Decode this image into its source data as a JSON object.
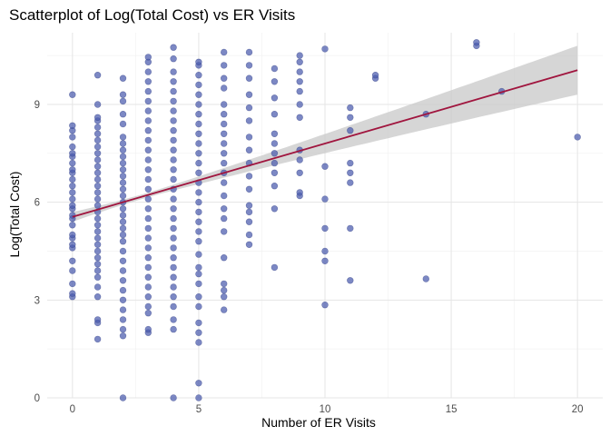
{
  "chart_data": {
    "type": "scatter",
    "title": "Scatterplot of Log(Total Cost) vs ER Visits",
    "xlabel": "Number of ER Visits",
    "ylabel": "Log(Total Cost)",
    "xlim": [
      -1,
      21
    ],
    "ylim": [
      0,
      11.2
    ],
    "x_ticks": [
      0,
      5,
      10,
      15,
      20
    ],
    "y_ticks": [
      0,
      3,
      6,
      9
    ],
    "x_tick_labels": [
      "0",
      "5",
      "10",
      "15",
      "20"
    ],
    "y_tick_labels": [
      "0",
      "3",
      "6",
      "9"
    ],
    "grid": true,
    "legend": "none",
    "colors": {
      "points": "#4a5aad",
      "fit_line": "#a0153e",
      "confidence_band": "#c8c8c8"
    },
    "fit": {
      "method": "linear",
      "x_range": [
        0,
        20
      ],
      "y_at_x0": 5.55,
      "y_at_x20": 10.05,
      "band_half_width_at_x0": 0.15,
      "band_half_width_at_x20": 0.75,
      "band_min_half_width": 0.07,
      "band_min_at_x": 3
    },
    "points": [
      [
        0,
        3.1
      ],
      [
        0,
        3.2
      ],
      [
        0,
        3.5
      ],
      [
        0,
        3.9
      ],
      [
        0,
        4.2
      ],
      [
        0,
        4.6
      ],
      [
        0,
        4.7
      ],
      [
        0,
        4.9
      ],
      [
        0,
        5.0
      ],
      [
        0,
        5.3
      ],
      [
        0,
        5.5
      ],
      [
        0,
        5.6
      ],
      [
        0,
        5.8
      ],
      [
        0,
        5.9
      ],
      [
        0,
        6.1
      ],
      [
        0,
        6.3
      ],
      [
        0,
        6.5
      ],
      [
        0,
        6.7
      ],
      [
        0,
        6.9
      ],
      [
        0,
        7.0
      ],
      [
        0,
        7.2
      ],
      [
        0,
        7.4
      ],
      [
        0,
        7.5
      ],
      [
        0,
        7.7
      ],
      [
        0,
        8.0
      ],
      [
        0,
        8.2
      ],
      [
        0,
        8.35
      ],
      [
        0,
        9.3
      ],
      [
        1,
        1.8
      ],
      [
        1,
        2.3
      ],
      [
        1,
        2.4
      ],
      [
        1,
        3.1
      ],
      [
        1,
        3.4
      ],
      [
        1,
        3.7
      ],
      [
        1,
        3.9
      ],
      [
        1,
        4.1
      ],
      [
        1,
        4.3
      ],
      [
        1,
        4.5
      ],
      [
        1,
        4.7
      ],
      [
        1,
        4.9
      ],
      [
        1,
        5.1
      ],
      [
        1,
        5.3
      ],
      [
        1,
        5.5
      ],
      [
        1,
        5.7
      ],
      [
        1,
        5.9
      ],
      [
        1,
        6.1
      ],
      [
        1,
        6.3
      ],
      [
        1,
        6.5
      ],
      [
        1,
        6.7
      ],
      [
        1,
        6.9
      ],
      [
        1,
        7.1
      ],
      [
        1,
        7.3
      ],
      [
        1,
        7.5
      ],
      [
        1,
        7.7
      ],
      [
        1,
        7.9
      ],
      [
        1,
        8.1
      ],
      [
        1,
        8.3
      ],
      [
        1,
        8.5
      ],
      [
        1,
        8.6
      ],
      [
        1,
        9.0
      ],
      [
        1,
        9.9
      ],
      [
        2,
        0.0
      ],
      [
        2,
        1.9
      ],
      [
        2,
        2.1
      ],
      [
        2,
        2.4
      ],
      [
        2,
        2.7
      ],
      [
        2,
        3.0
      ],
      [
        2,
        3.3
      ],
      [
        2,
        3.6
      ],
      [
        2,
        3.9
      ],
      [
        2,
        4.2
      ],
      [
        2,
        4.5
      ],
      [
        2,
        4.8
      ],
      [
        2,
        5.0
      ],
      [
        2,
        5.2
      ],
      [
        2,
        5.4
      ],
      [
        2,
        5.6
      ],
      [
        2,
        5.8
      ],
      [
        2,
        6.0
      ],
      [
        2,
        6.2
      ],
      [
        2,
        6.4
      ],
      [
        2,
        6.6
      ],
      [
        2,
        6.8
      ],
      [
        2,
        7.0
      ],
      [
        2,
        7.2
      ],
      [
        2,
        7.4
      ],
      [
        2,
        7.6
      ],
      [
        2,
        7.8
      ],
      [
        2,
        8.0
      ],
      [
        2,
        8.4
      ],
      [
        2,
        8.7
      ],
      [
        2,
        9.1
      ],
      [
        2,
        9.3
      ],
      [
        2,
        9.8
      ],
      [
        3,
        2.0
      ],
      [
        3,
        2.1
      ],
      [
        3,
        2.6
      ],
      [
        3,
        2.8
      ],
      [
        3,
        3.1
      ],
      [
        3,
        3.4
      ],
      [
        3,
        3.7
      ],
      [
        3,
        4.0
      ],
      [
        3,
        4.3
      ],
      [
        3,
        4.6
      ],
      [
        3,
        4.9
      ],
      [
        3,
        5.2
      ],
      [
        3,
        5.5
      ],
      [
        3,
        5.8
      ],
      [
        3,
        6.1
      ],
      [
        3,
        6.4
      ],
      [
        3,
        6.7
      ],
      [
        3,
        7.0
      ],
      [
        3,
        7.3
      ],
      [
        3,
        7.6
      ],
      [
        3,
        7.9
      ],
      [
        3,
        8.2
      ],
      [
        3,
        8.5
      ],
      [
        3,
        8.8
      ],
      [
        3,
        9.1
      ],
      [
        3,
        9.4
      ],
      [
        3,
        9.7
      ],
      [
        3,
        10.0
      ],
      [
        3,
        10.3
      ],
      [
        3,
        10.45
      ],
      [
        4,
        0.0
      ],
      [
        4,
        2.1
      ],
      [
        4,
        2.4
      ],
      [
        4,
        2.8
      ],
      [
        4,
        3.1
      ],
      [
        4,
        3.4
      ],
      [
        4,
        3.7
      ],
      [
        4,
        4.0
      ],
      [
        4,
        4.3
      ],
      [
        4,
        4.6
      ],
      [
        4,
        4.9
      ],
      [
        4,
        5.2
      ],
      [
        4,
        5.5
      ],
      [
        4,
        5.8
      ],
      [
        4,
        6.1
      ],
      [
        4,
        6.4
      ],
      [
        4,
        6.7
      ],
      [
        4,
        7.0
      ],
      [
        4,
        7.3
      ],
      [
        4,
        7.6
      ],
      [
        4,
        7.9
      ],
      [
        4,
        8.2
      ],
      [
        4,
        8.5
      ],
      [
        4,
        8.8
      ],
      [
        4,
        9.1
      ],
      [
        4,
        9.4
      ],
      [
        4,
        9.7
      ],
      [
        4,
        10.0
      ],
      [
        4,
        10.4
      ],
      [
        4,
        10.75
      ],
      [
        5,
        0.0
      ],
      [
        5,
        0.45
      ],
      [
        5,
        1.7
      ],
      [
        5,
        2.0
      ],
      [
        5,
        2.3
      ],
      [
        5,
        2.8
      ],
      [
        5,
        3.1
      ],
      [
        5,
        3.5
      ],
      [
        5,
        3.8
      ],
      [
        5,
        4.0
      ],
      [
        5,
        4.4
      ],
      [
        5,
        4.8
      ],
      [
        5,
        5.1
      ],
      [
        5,
        5.4
      ],
      [
        5,
        5.7
      ],
      [
        5,
        6.0
      ],
      [
        5,
        6.3
      ],
      [
        5,
        6.6
      ],
      [
        5,
        6.9
      ],
      [
        5,
        7.2
      ],
      [
        5,
        7.5
      ],
      [
        5,
        7.8
      ],
      [
        5,
        8.1
      ],
      [
        5,
        8.4
      ],
      [
        5,
        8.7
      ],
      [
        5,
        9.0
      ],
      [
        5,
        9.3
      ],
      [
        5,
        9.6
      ],
      [
        5,
        9.9
      ],
      [
        5,
        10.2
      ],
      [
        5,
        10.3
      ],
      [
        6,
        2.7
      ],
      [
        6,
        3.1
      ],
      [
        6,
        3.3
      ],
      [
        6,
        3.5
      ],
      [
        6,
        4.3
      ],
      [
        6,
        5.1
      ],
      [
        6,
        5.5
      ],
      [
        6,
        5.8
      ],
      [
        6,
        6.2
      ],
      [
        6,
        6.6
      ],
      [
        6,
        6.9
      ],
      [
        6,
        7.2
      ],
      [
        6,
        7.5
      ],
      [
        6,
        7.8
      ],
      [
        6,
        8.1
      ],
      [
        6,
        8.4
      ],
      [
        6,
        8.7
      ],
      [
        6,
        9.0
      ],
      [
        6,
        9.5
      ],
      [
        6,
        9.8
      ],
      [
        6,
        10.2
      ],
      [
        6,
        10.6
      ],
      [
        7,
        4.7
      ],
      [
        7,
        5.0
      ],
      [
        7,
        5.4
      ],
      [
        7,
        5.7
      ],
      [
        7,
        5.9
      ],
      [
        7,
        6.4
      ],
      [
        7,
        6.8
      ],
      [
        7,
        7.2
      ],
      [
        7,
        7.6
      ],
      [
        7,
        8.0
      ],
      [
        7,
        8.5
      ],
      [
        7,
        8.9
      ],
      [
        7,
        9.3
      ],
      [
        7,
        9.8
      ],
      [
        7,
        10.2
      ],
      [
        7,
        10.6
      ],
      [
        8,
        4.0
      ],
      [
        8,
        5.8
      ],
      [
        8,
        6.5
      ],
      [
        8,
        6.9
      ],
      [
        8,
        7.2
      ],
      [
        8,
        7.5
      ],
      [
        8,
        7.8
      ],
      [
        8,
        8.1
      ],
      [
        8,
        8.7
      ],
      [
        8,
        9.2
      ],
      [
        8,
        9.7
      ],
      [
        8,
        10.1
      ],
      [
        9,
        6.2
      ],
      [
        9,
        6.3
      ],
      [
        9,
        6.9
      ],
      [
        9,
        7.3
      ],
      [
        9,
        7.6
      ],
      [
        9,
        8.6
      ],
      [
        9,
        9.0
      ],
      [
        9,
        9.4
      ],
      [
        9,
        9.7
      ],
      [
        9,
        10.0
      ],
      [
        9,
        10.3
      ],
      [
        9,
        10.5
      ],
      [
        10,
        2.85
      ],
      [
        10,
        4.2
      ],
      [
        10,
        4.5
      ],
      [
        10,
        5.2
      ],
      [
        10,
        6.1
      ],
      [
        10,
        7.1
      ],
      [
        10,
        10.7
      ],
      [
        11,
        3.6
      ],
      [
        11,
        5.2
      ],
      [
        11,
        6.6
      ],
      [
        11,
        6.9
      ],
      [
        11,
        7.2
      ],
      [
        11,
        8.2
      ],
      [
        11,
        8.6
      ],
      [
        11,
        8.9
      ],
      [
        12,
        9.8
      ],
      [
        12,
        9.9
      ],
      [
        14,
        3.65
      ],
      [
        14,
        8.7
      ],
      [
        16,
        10.8
      ],
      [
        16,
        10.9
      ],
      [
        17,
        9.4
      ],
      [
        20,
        8.0
      ]
    ]
  }
}
